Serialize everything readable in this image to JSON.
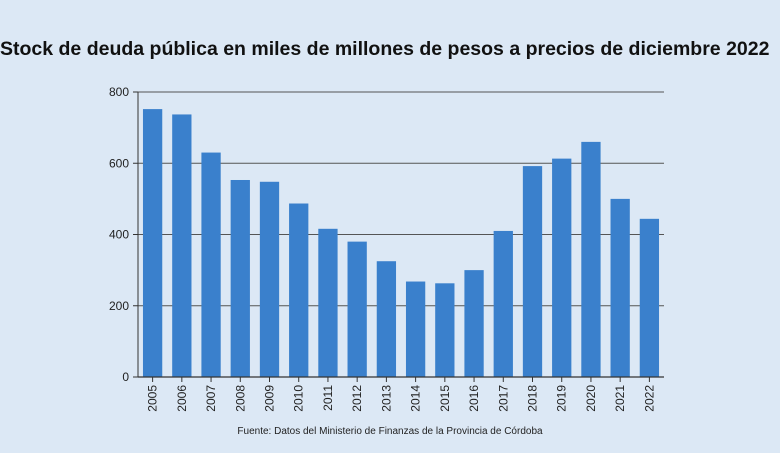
{
  "chart_data": {
    "type": "bar",
    "title": "Stock de deuda pública en miles de millones de pesos a precios de diciembre 2022",
    "source": "Fuente: Datos del Ministerio de Finanzas de la Provincia de Córdoba",
    "categories": [
      "2005",
      "2006",
      "2007",
      "2008",
      "2009",
      "2010",
      "2011",
      "2012",
      "2013",
      "2014",
      "2015",
      "2016",
      "2017",
      "2018",
      "2019",
      "2020",
      "2021",
      "2022"
    ],
    "values": [
      752,
      737,
      630,
      553,
      548,
      487,
      416,
      380,
      325,
      268,
      263,
      300,
      410,
      592,
      613,
      660,
      500,
      444
    ],
    "ylim": [
      0,
      800
    ],
    "yticks": [
      0,
      200,
      400,
      600,
      800
    ],
    "xlabel": "",
    "ylabel": "",
    "grid": true,
    "bar_color": "#3a80cc"
  }
}
